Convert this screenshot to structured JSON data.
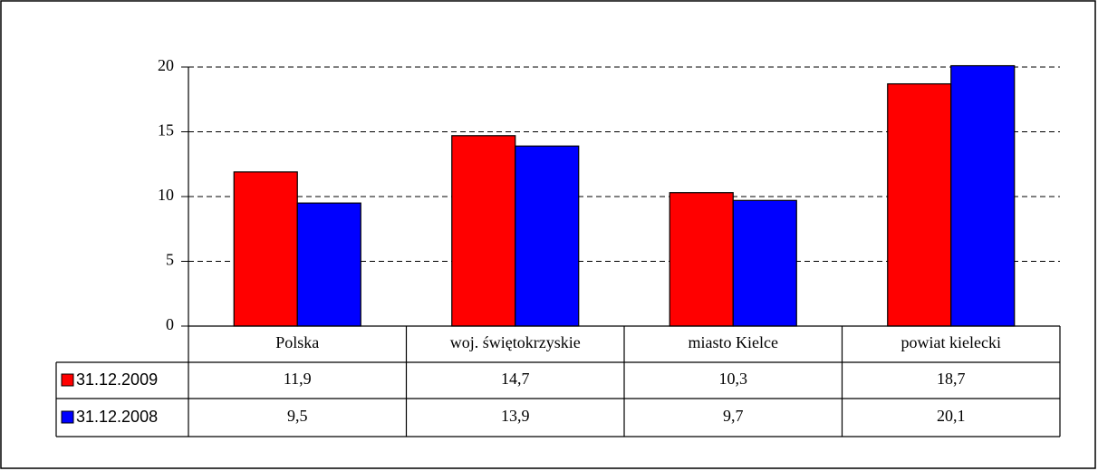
{
  "chart_data": {
    "type": "bar",
    "categories": [
      "Polska",
      "woj. świętokrzyskie",
      "miasto Kielce",
      "powiat kielecki"
    ],
    "series": [
      {
        "name": "31.12.2009",
        "color": "#ff0000",
        "values": [
          11.9,
          14.7,
          10.3,
          18.7
        ],
        "value_labels": [
          "11,9",
          "14,7",
          "10,3",
          "18,7"
        ]
      },
      {
        "name": "31.12.2008",
        "color": "#0000ff",
        "values": [
          9.5,
          13.9,
          9.7,
          20.1
        ],
        "value_labels": [
          "9,5",
          "13,9",
          "9,7",
          "20,1"
        ]
      }
    ],
    "ylim": [
      0,
      20
    ],
    "yticks": [
      0,
      5,
      10,
      15,
      20
    ],
    "grid": true
  }
}
